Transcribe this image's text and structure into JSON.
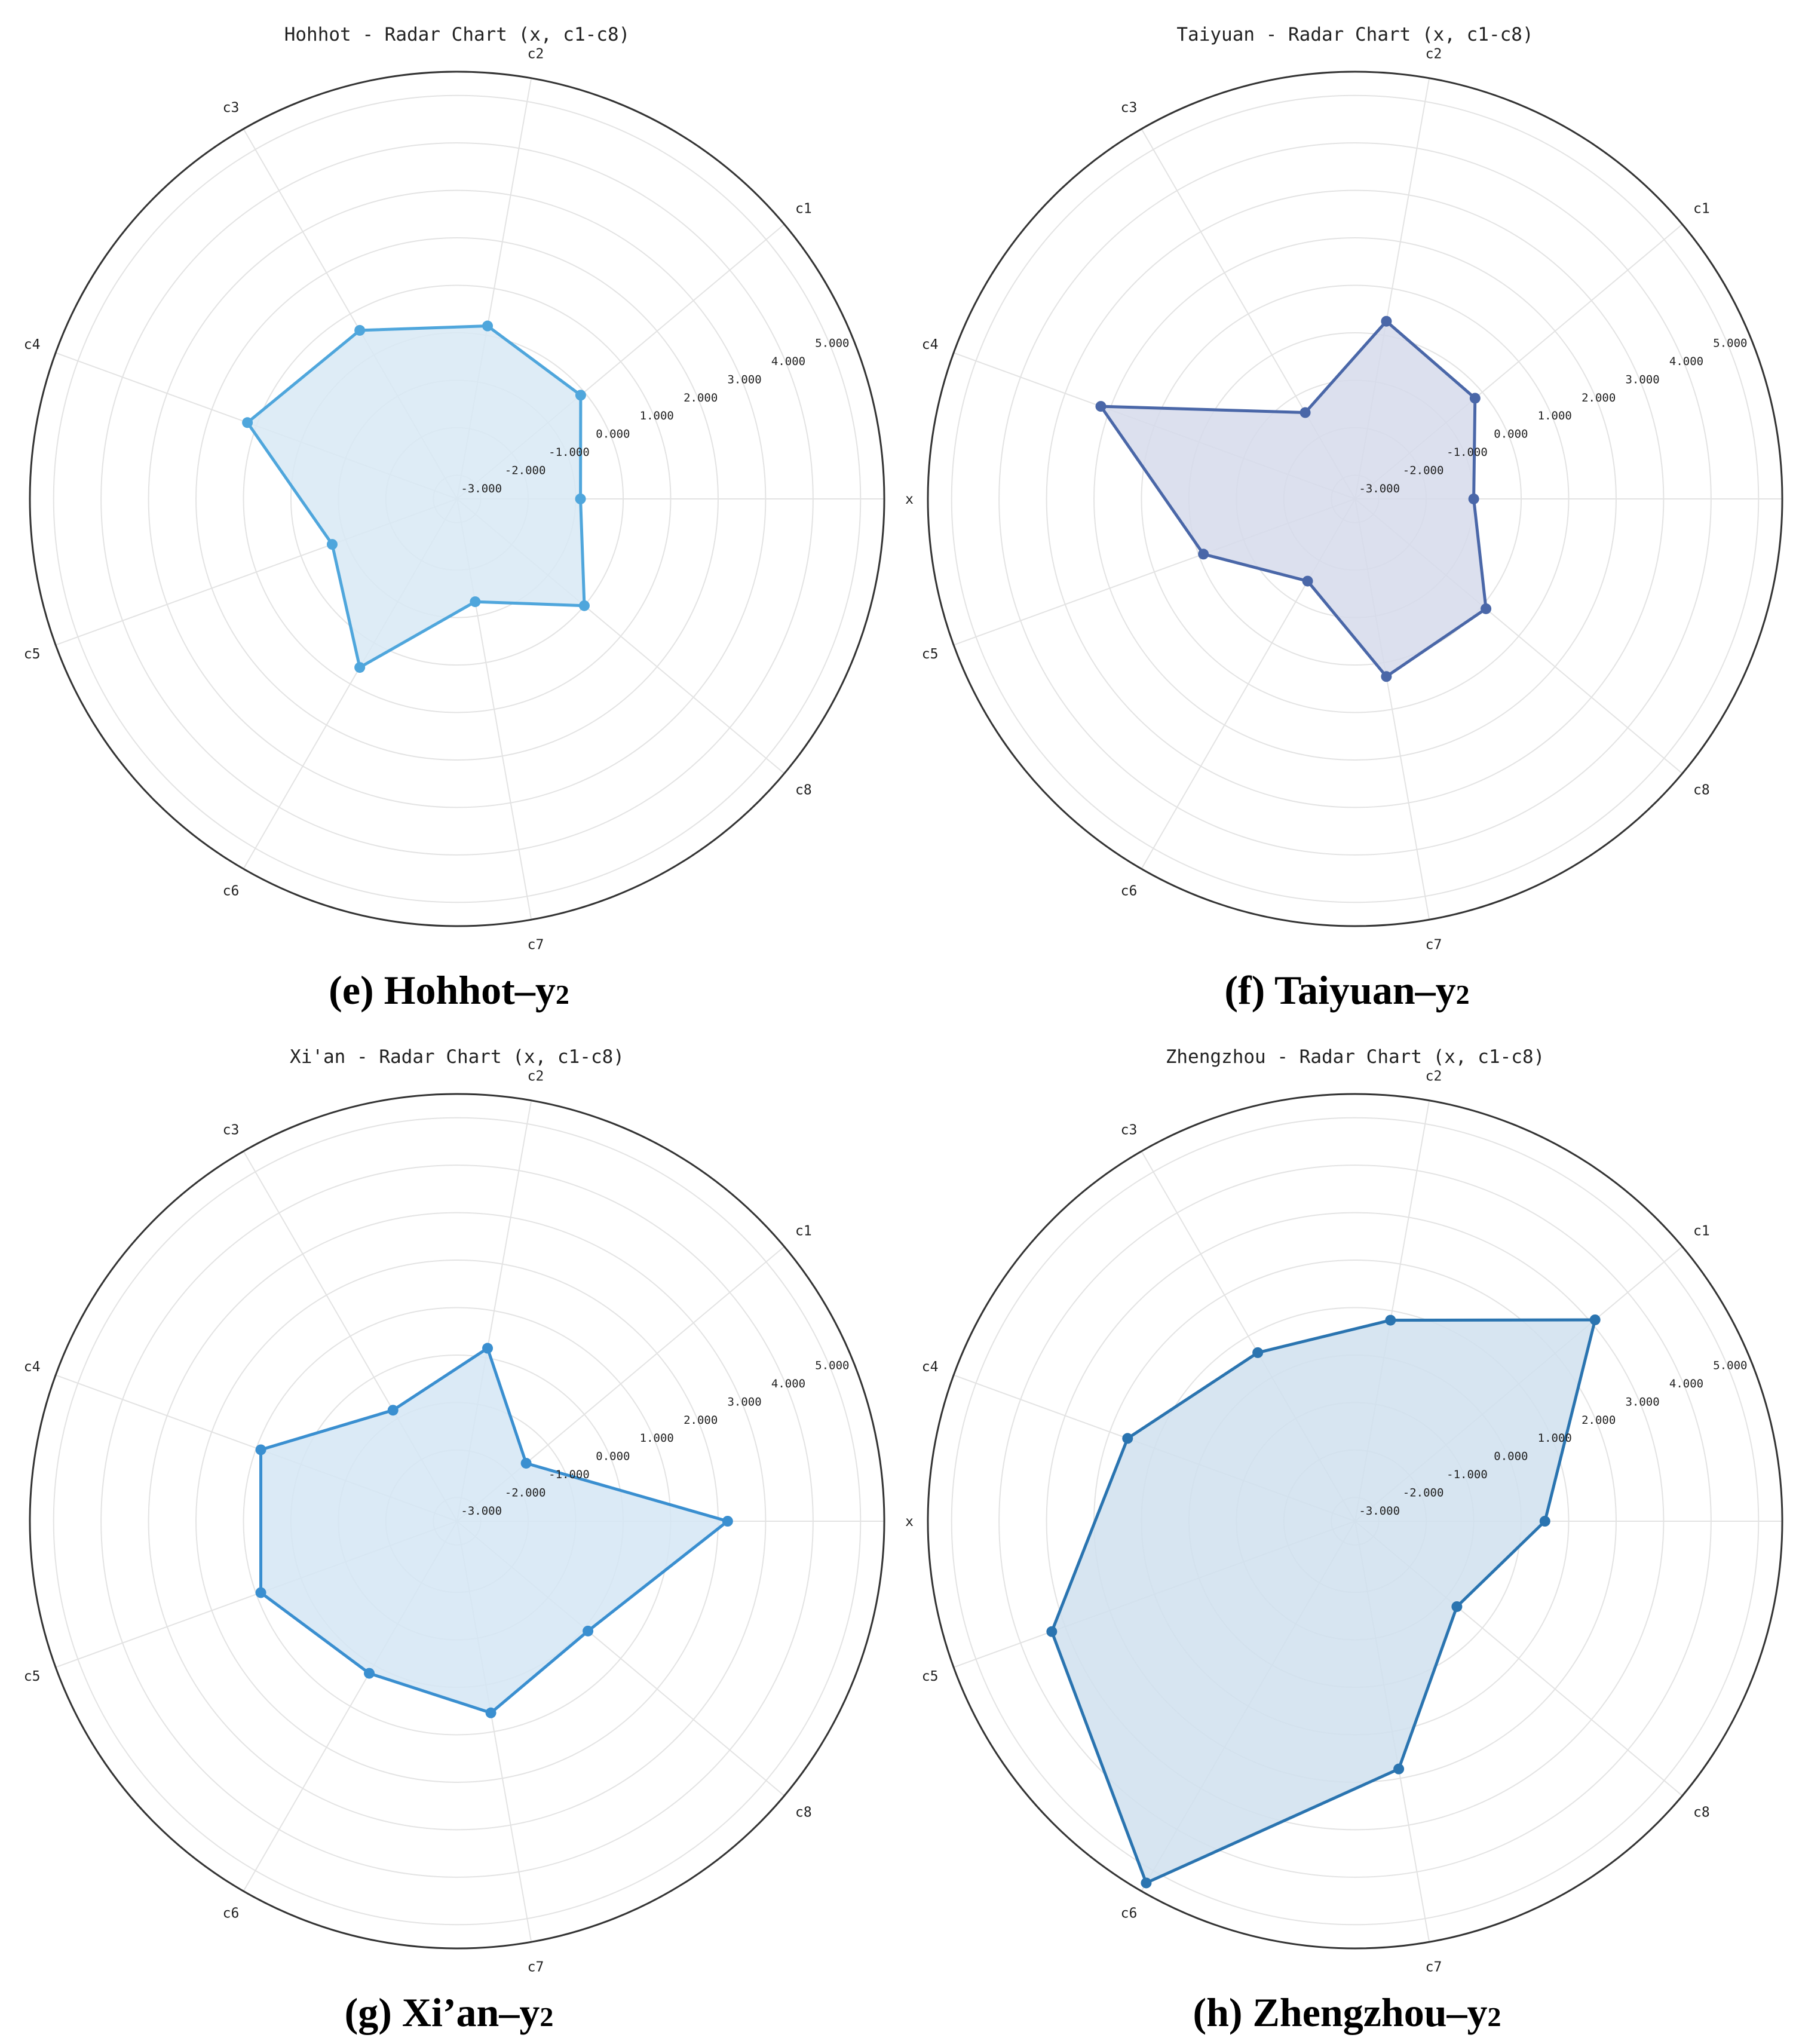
{
  "chart_data": [
    {
      "type": "radar",
      "title": "Hohhot - Radar Chart (x, c1-c8)",
      "caption": {
        "text": "(e) Hohhot–y",
        "subscript": "2"
      },
      "axes": [
        "x",
        "c1",
        "c2",
        "c3",
        "c4",
        "c5",
        "c6",
        "c7",
        "c8"
      ],
      "tick_labels": [
        "-3.000",
        "-2.000",
        "-1.000",
        "0.000",
        "1.000",
        "2.000",
        "3.000",
        "4.000",
        "5.000"
      ],
      "rlim": [
        -3.5,
        5.5
      ],
      "values": [
        -0.9,
        -0.1,
        0.2,
        0.6,
        1.2,
        -0.7,
        0.6,
        -1.3,
        0.0
      ],
      "color": "#4fa6dc",
      "fill": "#d8e9f5",
      "grid": true
    },
    {
      "type": "radar",
      "title": "Taiyuan - Radar Chart (x, c1-c8)",
      "caption": {
        "text": "(f) Taiyuan–y",
        "subscript": "2"
      },
      "axes": [
        "x",
        "c1",
        "c2",
        "c3",
        "c4",
        "c5",
        "c6",
        "c7",
        "c8"
      ],
      "tick_labels": [
        "-3.000",
        "-2.000",
        "-1.000",
        "0.000",
        "1.000",
        "2.000",
        "3.000",
        "4.000",
        "5.000"
      ],
      "rlim": [
        -3.5,
        5.5
      ],
      "values": [
        -1.0,
        -0.2,
        0.3,
        -1.4,
        2.2,
        -0.1,
        -1.5,
        0.3,
        0.1
      ],
      "color": "#4a67a8",
      "fill": "#d6dbeb",
      "grid": true
    },
    {
      "type": "radar",
      "title": "Xi'an - Radar Chart (x, c1-c8)",
      "caption": {
        "text": "(g) Xi’an–y",
        "subscript": "2"
      },
      "axes": [
        "x",
        "c1",
        "c2",
        "c3",
        "c4",
        "c5",
        "c6",
        "c7",
        "c8"
      ],
      "tick_labels": [
        "-3.000",
        "-2.000",
        "-1.000",
        "0.000",
        "1.000",
        "2.000",
        "3.000",
        "4.000",
        "5.000"
      ],
      "rlim": [
        -3.5,
        5.5
      ],
      "values": [
        2.2,
        -1.6,
        0.2,
        -0.8,
        0.9,
        0.9,
        0.2,
        0.6,
        0.1
      ],
      "color": "#3a8fd0",
      "fill": "#d5e6f5",
      "grid": true
    },
    {
      "type": "radar",
      "title": "Zhengzhou - Radar Chart (x, c1-c8)",
      "caption": {
        "text": "(h) Zhengzhou–y",
        "subscript": "2"
      },
      "axes": [
        "x",
        "c1",
        "c2",
        "c3",
        "c4",
        "c5",
        "c6",
        "c7",
        "c8"
      ],
      "tick_labels": [
        "-3.000",
        "-2.000",
        "-1.000",
        "0.000",
        "1.000",
        "2.000",
        "3.000",
        "4.000",
        "5.000"
      ],
      "rlim": [
        -3.5,
        5.5
      ],
      "values": [
        0.5,
        3.1,
        0.8,
        0.6,
        1.6,
        3.3,
        5.3,
        1.8,
        -0.7
      ],
      "color": "#2a74b0",
      "fill": "#d0e0ee",
      "grid": true
    }
  ]
}
